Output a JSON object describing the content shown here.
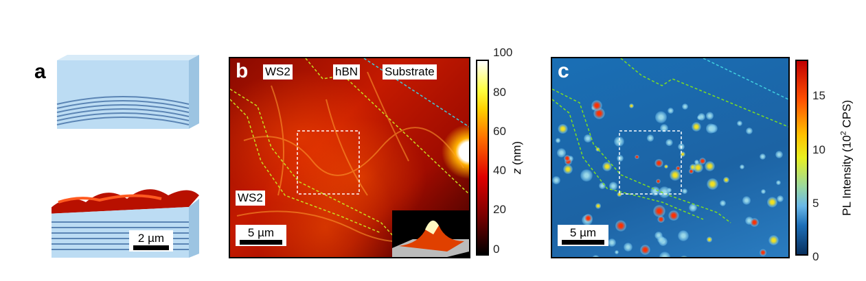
{
  "panels": {
    "a": {
      "label": "a",
      "scalebar": "2 µm"
    },
    "b": {
      "label": "b",
      "regions": [
        "WS2",
        "hBN",
        "Substrate",
        "WS2"
      ],
      "scalebar": "5 µm",
      "colorbar": {
        "label_var": "z",
        "label_unit": " (nm)",
        "ticks": [
          "100",
          "80",
          "60",
          "40",
          "20",
          "0"
        ],
        "range": [
          0,
          100
        ],
        "colormap": "hot"
      }
    },
    "c": {
      "label": "c",
      "scalebar": "5 µm",
      "colorbar": {
        "label": "PL Intensity (10",
        "label_sup": "2",
        "label_end": " CPS)",
        "ticks": [
          "15",
          "10",
          "5",
          "0"
        ],
        "range": [
          0,
          18
        ],
        "colormap": "jet"
      }
    }
  },
  "colors": {
    "boundary_green": "#c8e020",
    "boundary_cyan": "#40d0e0",
    "box": "#ffffff"
  }
}
